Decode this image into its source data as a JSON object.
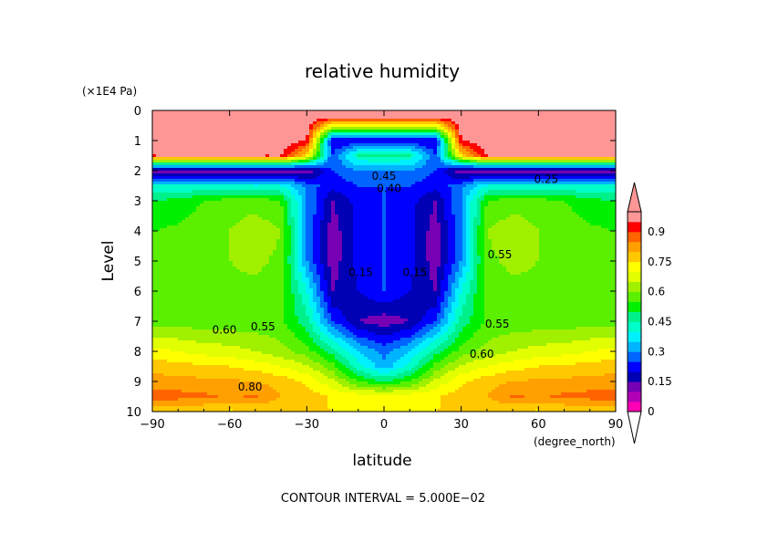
{
  "chart_data": {
    "type": "heatmap",
    "subtype": "filled-contour",
    "title": "relative humidity",
    "xlabel": "latitude",
    "ylabel": "Level",
    "x_units": "(degree_north)",
    "y_units": "(×1E4 Pa)",
    "xlim": [
      -90,
      90
    ],
    "ylim": [
      0,
      10
    ],
    "y_inverted": true,
    "xticks": [
      -90,
      -60,
      -30,
      0,
      30,
      60,
      90
    ],
    "xtick_labels": [
      "−90",
      "−60",
      "−30",
      "0",
      "30",
      "60",
      "90"
    ],
    "yticks": [
      0,
      1,
      2,
      3,
      4,
      5,
      6,
      7,
      8,
      9,
      10
    ],
    "ytick_labels": [
      "0",
      "1",
      "2",
      "3",
      "4",
      "5",
      "6",
      "7",
      "8",
      "9",
      "10"
    ],
    "footer": "CONTOUR INTERVAL = 5.000E−02",
    "grid": false,
    "colorbar": {
      "placement": "right",
      "levels": [
        0,
        0.05,
        0.1,
        0.15,
        0.2,
        0.25,
        0.3,
        0.35,
        0.4,
        0.45,
        0.5,
        0.55,
        0.6,
        0.65,
        0.7,
        0.75,
        0.8,
        0.85,
        0.9,
        0.95,
        1.0
      ],
      "tick_values": [
        0,
        0.15,
        0.3,
        0.45,
        0.6,
        0.75,
        0.9
      ],
      "tick_labels": [
        "0",
        "0.15",
        "0.3",
        "0.45",
        "0.6",
        "0.75",
        "0.9"
      ],
      "colors": [
        "#ff00b4",
        "#b400b4",
        "#7800b4",
        "#0000b4",
        "#0000ff",
        "#0064ff",
        "#00b4ff",
        "#00f0ff",
        "#00ffc8",
        "#00f08c",
        "#00f000",
        "#5af000",
        "#a0f000",
        "#e1ff00",
        "#ffff00",
        "#ffc800",
        "#ffa000",
        "#ff6400",
        "#ff0000",
        "#ff9696"
      ],
      "extend": "both"
    },
    "latitudes": [
      -90,
      -80,
      -70,
      -60,
      -50,
      -40,
      -30,
      -20,
      -10,
      0,
      10,
      20,
      30,
      40,
      50,
      60,
      70,
      80,
      90
    ],
    "levels_pa_1e4": [
      0.2,
      1.0,
      1.5,
      2.0,
      2.5,
      3.0,
      4.0,
      5.0,
      6.0,
      7.0,
      8.0,
      8.5,
      9.0,
      9.5,
      10.0
    ],
    "values": [
      [
        1.0,
        1.0,
        1.0,
        1.0,
        1.0,
        1.0,
        1.0,
        1.0,
        1.0,
        1.0,
        1.0,
        1.0,
        1.0,
        1.0,
        1.0,
        1.0,
        1.0,
        1.0,
        1.0
      ],
      [
        1.0,
        1.0,
        1.0,
        1.0,
        1.0,
        1.0,
        0.95,
        0.2,
        0.2,
        0.2,
        0.2,
        0.2,
        0.95,
        1.0,
        1.0,
        1.0,
        1.0,
        1.0,
        1.0
      ],
      [
        0.95,
        0.95,
        0.95,
        0.95,
        0.95,
        0.95,
        0.75,
        0.25,
        0.45,
        0.47,
        0.45,
        0.25,
        0.75,
        0.95,
        0.95,
        0.95,
        0.95,
        0.95,
        0.95
      ],
      [
        0.1,
        0.1,
        0.1,
        0.1,
        0.1,
        0.1,
        0.1,
        0.25,
        0.3,
        0.3,
        0.3,
        0.25,
        0.1,
        0.1,
        0.1,
        0.1,
        0.1,
        0.1,
        0.1
      ],
      [
        0.4,
        0.4,
        0.4,
        0.4,
        0.4,
        0.4,
        0.28,
        0.22,
        0.25,
        0.25,
        0.25,
        0.22,
        0.28,
        0.4,
        0.4,
        0.4,
        0.4,
        0.4,
        0.4
      ],
      [
        0.5,
        0.52,
        0.55,
        0.57,
        0.58,
        0.55,
        0.3,
        0.15,
        0.22,
        0.25,
        0.22,
        0.15,
        0.3,
        0.55,
        0.58,
        0.57,
        0.55,
        0.52,
        0.5
      ],
      [
        0.55,
        0.56,
        0.58,
        0.6,
        0.63,
        0.6,
        0.3,
        0.12,
        0.22,
        0.25,
        0.22,
        0.12,
        0.3,
        0.6,
        0.63,
        0.6,
        0.58,
        0.56,
        0.55
      ],
      [
        0.56,
        0.57,
        0.59,
        0.6,
        0.61,
        0.59,
        0.3,
        0.12,
        0.22,
        0.25,
        0.22,
        0.12,
        0.3,
        0.59,
        0.61,
        0.6,
        0.59,
        0.57,
        0.56
      ],
      [
        0.57,
        0.58,
        0.59,
        0.59,
        0.59,
        0.58,
        0.4,
        0.15,
        0.2,
        0.25,
        0.2,
        0.15,
        0.4,
        0.58,
        0.59,
        0.59,
        0.59,
        0.58,
        0.57
      ],
      [
        0.58,
        0.58,
        0.57,
        0.57,
        0.57,
        0.56,
        0.47,
        0.25,
        0.15,
        0.12,
        0.15,
        0.25,
        0.47,
        0.56,
        0.57,
        0.57,
        0.57,
        0.58,
        0.58
      ],
      [
        0.72,
        0.7,
        0.68,
        0.67,
        0.65,
        0.62,
        0.57,
        0.48,
        0.35,
        0.28,
        0.35,
        0.48,
        0.57,
        0.62,
        0.65,
        0.67,
        0.68,
        0.7,
        0.72
      ],
      [
        0.78,
        0.77,
        0.76,
        0.75,
        0.73,
        0.7,
        0.66,
        0.57,
        0.42,
        0.32,
        0.42,
        0.57,
        0.66,
        0.7,
        0.73,
        0.75,
        0.76,
        0.77,
        0.78
      ],
      [
        0.82,
        0.82,
        0.81,
        0.81,
        0.8,
        0.78,
        0.74,
        0.66,
        0.55,
        0.5,
        0.55,
        0.66,
        0.74,
        0.78,
        0.8,
        0.81,
        0.81,
        0.82,
        0.82
      ],
      [
        0.88,
        0.87,
        0.86,
        0.84,
        0.86,
        0.8,
        0.78,
        0.74,
        0.73,
        0.72,
        0.73,
        0.74,
        0.78,
        0.8,
        0.86,
        0.84,
        0.86,
        0.87,
        0.88
      ],
      [
        0.76,
        0.76,
        0.75,
        0.74,
        0.75,
        0.76,
        0.76,
        0.75,
        0.74,
        0.74,
        0.74,
        0.75,
        0.76,
        0.76,
        0.75,
        0.74,
        0.75,
        0.76,
        0.76
      ]
    ],
    "contour_labels": [
      "0.60",
      "0.55",
      "0.55",
      "0.60",
      "0.55",
      "0.80",
      "0.45",
      "0.40",
      "0.15",
      "0.15",
      "0.25"
    ]
  }
}
